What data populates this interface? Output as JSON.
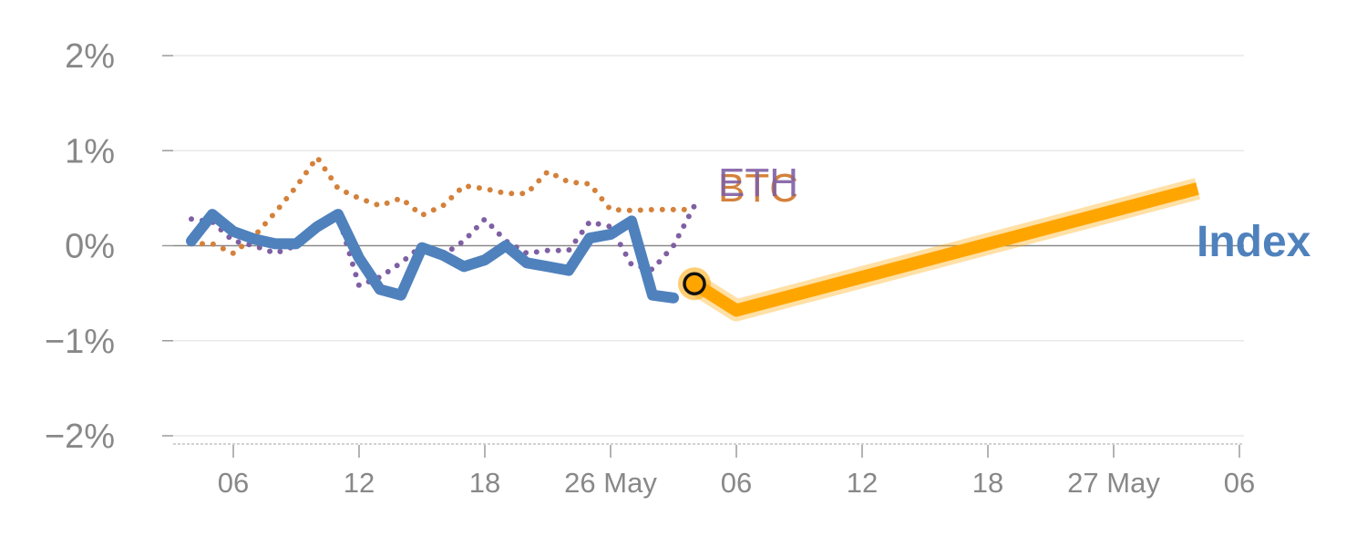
{
  "chart_data": {
    "type": "line",
    "title": "",
    "xlabel": "",
    "ylabel": "",
    "ylim": [
      -2,
      2
    ],
    "y_ticks": [
      {
        "value": 2,
        "label": "2%"
      },
      {
        "value": 1,
        "label": "1%"
      },
      {
        "value": 0,
        "label": "0%"
      },
      {
        "value": -1,
        "label": "−1%"
      },
      {
        "value": -2,
        "label": "−2%"
      }
    ],
    "x_ticks": [
      {
        "day": 2,
        "label": "06"
      },
      {
        "day": 8,
        "label": "12"
      },
      {
        "day": 14,
        "label": "18"
      },
      {
        "day": 20,
        "label": "26 May"
      },
      {
        "day": 26,
        "label": "06"
      },
      {
        "day": 32,
        "label": "12"
      },
      {
        "day": 38,
        "label": "18"
      },
      {
        "day": 44,
        "label": "27 May"
      },
      {
        "day": 50,
        "label": "06"
      }
    ],
    "xlim": [
      -1.5,
      50
    ],
    "series": [
      {
        "name": "BTC",
        "label": "BTC",
        "color": "#d4813a",
        "style": "dotted",
        "x": [
          0,
          1,
          2,
          3,
          4,
          5,
          6,
          7,
          8,
          9,
          10,
          11,
          12,
          13,
          14,
          15,
          16,
          17,
          18,
          19,
          20,
          21,
          22,
          23,
          24
        ],
        "values": [
          0.02,
          0.02,
          -0.08,
          0.1,
          0.35,
          0.62,
          0.93,
          0.6,
          0.5,
          0.42,
          0.5,
          0.32,
          0.42,
          0.63,
          0.6,
          0.55,
          0.55,
          0.78,
          0.67,
          0.65,
          0.38,
          0.37,
          0.38,
          0.38,
          0.38
        ]
      },
      {
        "name": "ETH",
        "label": "ETH",
        "color": "#7f5fa3",
        "style": "dotted",
        "x": [
          0,
          1,
          2,
          3,
          4,
          5,
          6,
          7,
          8,
          9,
          10,
          11,
          12,
          13,
          14,
          15,
          16,
          17,
          18,
          19,
          20,
          21,
          22,
          23,
          24
        ],
        "values": [
          0.28,
          0.25,
          0.05,
          0.0,
          -0.08,
          0.0,
          0.2,
          0.32,
          -0.42,
          -0.33,
          -0.18,
          0.0,
          -0.1,
          0.05,
          0.28,
          0.05,
          -0.08,
          -0.05,
          -0.05,
          0.25,
          0.2,
          -0.2,
          -0.25,
          0.0,
          0.42
        ]
      },
      {
        "name": "Index",
        "label": "Index",
        "color": "#4f81bd",
        "style": "solid",
        "x": [
          0,
          1,
          2,
          3,
          4,
          5,
          6,
          7,
          8,
          9,
          10,
          11,
          12,
          13,
          14,
          15,
          16,
          17,
          18,
          19,
          20,
          21,
          22,
          23
        ],
        "values": [
          0.05,
          0.33,
          0.15,
          0.07,
          0.02,
          0.02,
          0.2,
          0.33,
          -0.13,
          -0.46,
          -0.52,
          -0.02,
          -0.1,
          -0.22,
          -0.15,
          0.0,
          -0.18,
          -0.22,
          -0.26,
          0.08,
          0.12,
          0.26,
          -0.52,
          -0.55
        ]
      },
      {
        "name": "Index forecast",
        "label": "",
        "color": "#ffa500",
        "style": "solid",
        "x": [
          24,
          26,
          48
        ],
        "values": [
          -0.4,
          -0.68,
          0.6
        ]
      }
    ],
    "marker": {
      "series": "Index",
      "x": 24,
      "value": -0.4
    }
  }
}
